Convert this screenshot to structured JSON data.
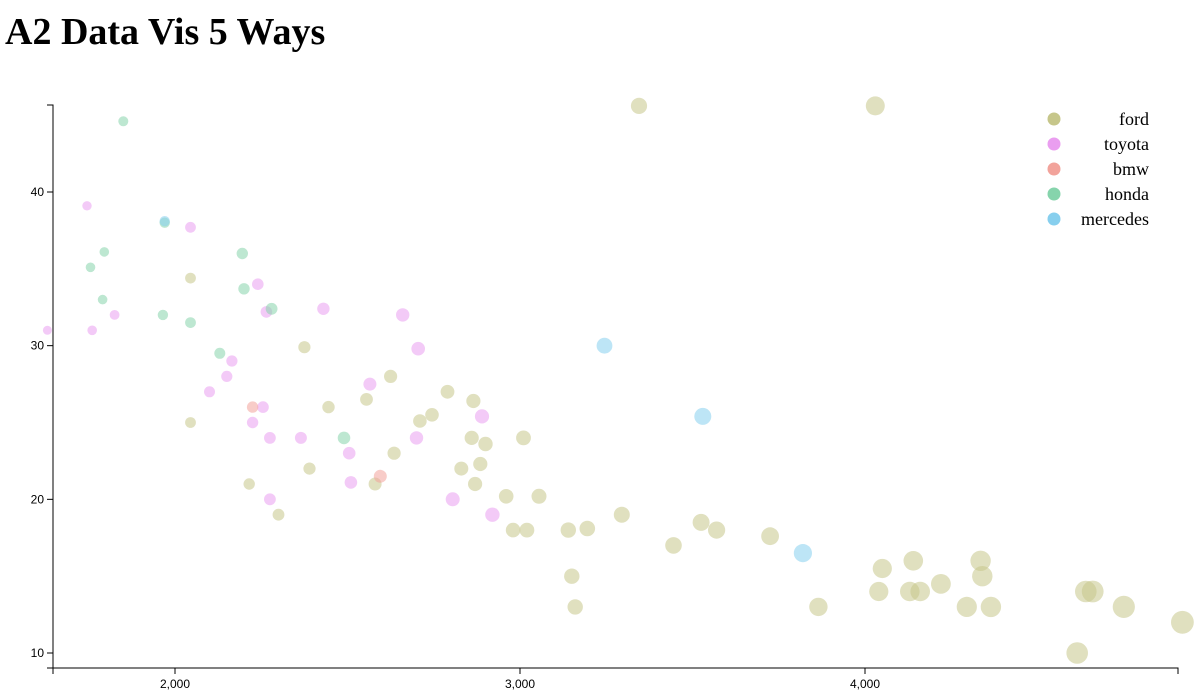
{
  "page": {
    "title": "A2 Data Vis 5 Ways"
  },
  "chart_data": {
    "type": "scatter",
    "title": "A2 Data Vis 5 Ways",
    "xlabel": "",
    "ylabel": "",
    "xlim": [
      1630,
      4950
    ],
    "ylim": [
      9.5,
      45.7
    ],
    "x_ticks": [
      2000,
      3000,
      4000
    ],
    "x_tick_labels": [
      "2,000",
      "3,000",
      "4,000"
    ],
    "y_ticks": [
      10,
      20,
      30,
      40
    ],
    "y_tick_labels": [
      "10",
      "20",
      "30",
      "40"
    ],
    "grid": false,
    "legend_position": "top-right",
    "size_encoding": "radius increases with x value",
    "series": [
      {
        "name": "ford",
        "color": "#c6c68a",
        "points": [
          [
            2045,
            34.4
          ],
          [
            2045,
            25
          ],
          [
            2215,
            21
          ],
          [
            2300,
            19
          ],
          [
            2375,
            29.9
          ],
          [
            2390,
            22
          ],
          [
            2445,
            26
          ],
          [
            2555,
            26.5
          ],
          [
            2580,
            21
          ],
          [
            2625,
            28
          ],
          [
            2635,
            23
          ],
          [
            2710,
            25.1
          ],
          [
            2745,
            25.5
          ],
          [
            2790,
            27
          ],
          [
            2830,
            22
          ],
          [
            2860,
            24
          ],
          [
            2865,
            26.4
          ],
          [
            2870,
            21
          ],
          [
            2885,
            22.3
          ],
          [
            2900,
            23.6
          ],
          [
            2960,
            20.2
          ],
          [
            2980,
            18
          ],
          [
            3010,
            24
          ],
          [
            3020,
            18
          ],
          [
            3055,
            20.2
          ],
          [
            3140,
            18
          ],
          [
            3150,
            15
          ],
          [
            3160,
            13
          ],
          [
            3195,
            18.1
          ],
          [
            3295,
            19
          ],
          [
            3345,
            45.6
          ],
          [
            3445,
            17
          ],
          [
            3525,
            18.5
          ],
          [
            3570,
            18
          ],
          [
            3725,
            17.6
          ],
          [
            3865,
            13
          ],
          [
            4030,
            45.6
          ],
          [
            4040,
            14
          ],
          [
            4050,
            15.5
          ],
          [
            4130,
            14
          ],
          [
            4140,
            16
          ],
          [
            4160,
            14
          ],
          [
            4220,
            14.5
          ],
          [
            4295,
            13
          ],
          [
            4335,
            16
          ],
          [
            4340,
            15
          ],
          [
            4365,
            13
          ],
          [
            4615,
            10
          ],
          [
            4640,
            14
          ],
          [
            4660,
            14
          ],
          [
            4750,
            13
          ],
          [
            4920,
            12
          ]
        ]
      },
      {
        "name": "toyota",
        "color": "#ea9ef0",
        "points": [
          [
            1630,
            31
          ],
          [
            1745,
            39.1
          ],
          [
            1760,
            31
          ],
          [
            1825,
            32
          ],
          [
            2045,
            37.7
          ],
          [
            2100,
            27
          ],
          [
            2150,
            28
          ],
          [
            2165,
            29
          ],
          [
            2225,
            25
          ],
          [
            2240,
            34
          ],
          [
            2255,
            26
          ],
          [
            2265,
            32.2
          ],
          [
            2275,
            24
          ],
          [
            2275,
            20
          ],
          [
            2365,
            24
          ],
          [
            2430,
            32.4
          ],
          [
            2505,
            23
          ],
          [
            2510,
            21.1
          ],
          [
            2565,
            27.5
          ],
          [
            2660,
            32
          ],
          [
            2700,
            24
          ],
          [
            2705,
            29.8
          ],
          [
            2805,
            20
          ],
          [
            2890,
            25.4
          ],
          [
            2920,
            19
          ]
        ]
      },
      {
        "name": "bmw",
        "color": "#f2a39b",
        "points": [
          [
            2225,
            26
          ],
          [
            2595,
            21.5
          ]
        ]
      },
      {
        "name": "honda",
        "color": "#86d4ac",
        "points": [
          [
            1755,
            35.1
          ],
          [
            1790,
            33
          ],
          [
            1795,
            36.1
          ],
          [
            1850,
            44.6
          ],
          [
            1965,
            32
          ],
          [
            1970,
            38
          ],
          [
            2045,
            31.5
          ],
          [
            2130,
            29.5
          ],
          [
            2195,
            36
          ],
          [
            2200,
            33.7
          ],
          [
            2280,
            32.4
          ],
          [
            2490,
            24
          ]
        ]
      },
      {
        "name": "mercedes",
        "color": "#87cfee",
        "points": [
          [
            1970,
            38.1
          ],
          [
            3245,
            30
          ],
          [
            3530,
            25.4
          ],
          [
            3820,
            16.5
          ]
        ]
      }
    ]
  }
}
